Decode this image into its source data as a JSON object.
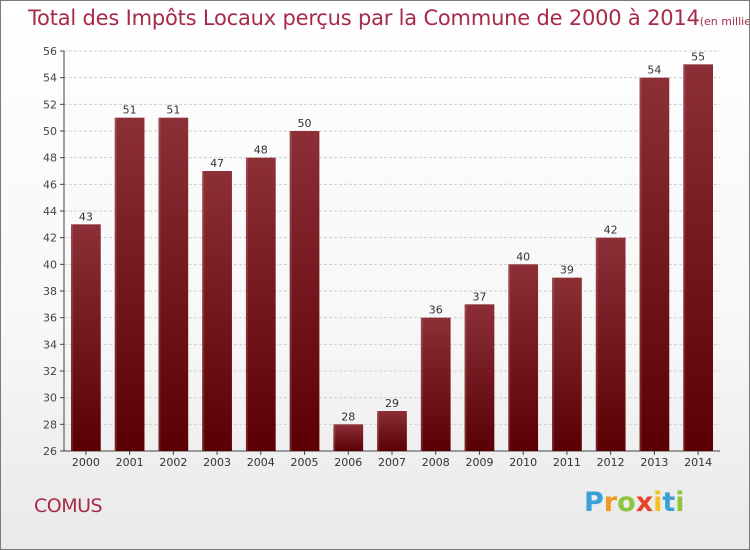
{
  "title": "Total des Impôts Locaux perçus par la Commune de 2000 à 2014",
  "title_unit": "(en milliers d'€)",
  "place": "COMUS",
  "logo": {
    "letters": [
      "P",
      "r",
      "o",
      "x",
      "i",
      "t",
      "i"
    ],
    "colors": [
      "#3aa0d8",
      "#f29a1f",
      "#8cc63f",
      "#e8452c",
      "#f2c21f",
      "#3aa0d8",
      "#8cc63f"
    ]
  },
  "colors": {
    "bar_top": "#8c2f37",
    "bar_bottom": "#5a0004",
    "title": "#a72a4a"
  },
  "chart_data": {
    "type": "bar",
    "title": "Total des Impôts Locaux perçus par la Commune de 2000 à 2014",
    "xlabel": "",
    "ylabel": "",
    "categories": [
      "2000",
      "2001",
      "2002",
      "2003",
      "2004",
      "2005",
      "2006",
      "2007",
      "2008",
      "2009",
      "2010",
      "2011",
      "2012",
      "2013",
      "2014"
    ],
    "values": [
      43,
      51,
      51,
      47,
      48,
      50,
      28,
      29,
      36,
      37,
      40,
      39,
      42,
      54,
      55
    ],
    "labels": [
      "43",
      "51",
      "51",
      "47",
      "48",
      "50",
      "28",
      "29",
      "36",
      "37",
      "40",
      "39",
      "42",
      "54",
      "55"
    ],
    "ylim": [
      26,
      56
    ],
    "yticks": [
      "26",
      "28",
      "30",
      "32",
      "34",
      "36",
      "38",
      "40",
      "42",
      "44",
      "46",
      "48",
      "50",
      "52",
      "54",
      "56"
    ],
    "grid": true
  }
}
